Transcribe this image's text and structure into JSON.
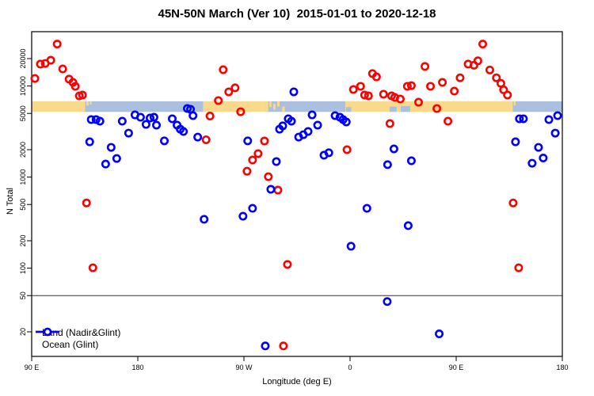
{
  "title": "45N-50N March (Ver 10)  2015-01-01 to 2020-12-18",
  "chart_data": {
    "type": "scatter",
    "title": "45N-50N March (Ver 10)  2015-01-01 to 2020-12-18",
    "xlabel": "Longitude (deg E)",
    "ylabel": "N Total",
    "x_axis": {
      "range_deg": [
        90,
        540
      ],
      "note": "longitude axis wraps: 90E to 180 then 90W, 0, 90E, 180",
      "ticks": [
        {
          "lon": 90,
          "label": "90 E"
        },
        {
          "lon": 180,
          "label": "180"
        },
        {
          "lon": 270,
          "label": "90 W"
        },
        {
          "lon": 360,
          "label": "0"
        },
        {
          "lon": 450,
          "label": "90 E"
        },
        {
          "lon": 540,
          "label": "180"
        }
      ]
    },
    "y_axis": {
      "scale": "log10",
      "range": [
        11,
        40000
      ],
      "ticks": [
        20,
        50,
        100,
        200,
        500,
        1000,
        2000,
        5000,
        10000,
        20000
      ],
      "grid": false
    },
    "reference_line": {
      "value": 50,
      "color": "#333333"
    },
    "surface_band": {
      "value_top": 6800,
      "value_bottom": 5200,
      "land_color": "#F9D98C",
      "ocean_color": "#ABC0DE",
      "segments": [
        {
          "type": "land",
          "from": 90,
          "to": 135.2
        },
        {
          "type": "ocean",
          "from": 135.2,
          "to": 235.5
        },
        {
          "type": "land",
          "from": 235.5,
          "to": 288.3
        },
        {
          "type": "ocean",
          "from": 288.3,
          "to": 356
        },
        {
          "type": "land",
          "from": 356,
          "to": 498
        },
        {
          "type": "ocean",
          "from": 498,
          "to": 541.5
        }
      ],
      "patches": [
        {
          "type": "land",
          "from": 288.3,
          "to": 290.6,
          "top": 0,
          "bottom": 1
        },
        {
          "type": "land",
          "from": 291.6,
          "to": 293.4,
          "top": 0,
          "bottom": 0.55
        },
        {
          "type": "land",
          "from": 294.8,
          "to": 296.8,
          "top": 0.25,
          "bottom": 0.8
        },
        {
          "type": "land",
          "from": 298.2,
          "to": 300.2,
          "top": 0,
          "bottom": 0.5
        },
        {
          "type": "land",
          "from": 302.4,
          "to": 304.6,
          "top": 0.5,
          "bottom": 1
        },
        {
          "type": "land",
          "from": 136.3,
          "to": 138.3,
          "top": 0,
          "bottom": 0.4
        },
        {
          "type": "land",
          "from": 139.3,
          "to": 140.8,
          "top": 0,
          "bottom": 0.3
        },
        {
          "type": "land",
          "from": 498.8,
          "to": 500.4,
          "top": 0,
          "bottom": 0.4
        },
        {
          "type": "ocean",
          "from": 356.5,
          "to": 361,
          "top": 0.55,
          "bottom": 1
        },
        {
          "type": "ocean",
          "from": 393.5,
          "to": 399.5,
          "top": 0.5,
          "bottom": 1
        },
        {
          "type": "ocean",
          "from": 403,
          "to": 411,
          "top": 0.45,
          "bottom": 1
        }
      ]
    },
    "legend_position": "bottom-left",
    "series": [
      {
        "name": "Land (Nadir&Glint)",
        "color": "#FF0000",
        "marker": "open-circle",
        "points": [
          [
            92.7,
            12100
          ],
          [
            97.4,
            17400
          ],
          [
            101.5,
            17700
          ],
          [
            106.2,
            19200
          ],
          [
            111.6,
            28900
          ],
          [
            116.3,
            15400
          ],
          [
            121.7,
            11900
          ],
          [
            125.0,
            10960
          ],
          [
            127.0,
            9930
          ],
          [
            130.4,
            7800
          ],
          [
            133.1,
            7960
          ],
          [
            136.5,
            520
          ],
          [
            141.9,
            101
          ],
          [
            237.9,
            2570
          ],
          [
            241.2,
            4680
          ],
          [
            248.3,
            6920
          ],
          [
            252.4,
            15100
          ],
          [
            257.1,
            8630
          ],
          [
            262.5,
            9550
          ],
          [
            267.2,
            5220
          ],
          [
            272.6,
            1160
          ],
          [
            277.3,
            1540
          ],
          [
            282.0,
            1810
          ],
          [
            287.4,
            2490
          ],
          [
            290.7,
            1010
          ],
          [
            298.8,
            720
          ],
          [
            303.5,
            14
          ],
          [
            306.9,
            110
          ],
          [
            357.4,
            2000
          ],
          [
            362.8,
            9160
          ],
          [
            368.9,
            9930
          ],
          [
            372.3,
            7960
          ],
          [
            375.6,
            7800
          ],
          [
            379.0,
            13700
          ],
          [
            382.4,
            12600
          ],
          [
            388.4,
            8130
          ],
          [
            393.8,
            3870
          ],
          [
            395.2,
            7800
          ],
          [
            397.9,
            7500
          ],
          [
            402.6,
            7200
          ],
          [
            408.6,
            9930
          ],
          [
            412.0,
            10100
          ],
          [
            418.1,
            6640
          ],
          [
            423.5,
            16400
          ],
          [
            428.2,
            9930
          ],
          [
            433.6,
            5660
          ],
          [
            438.3,
            10960
          ],
          [
            443.0,
            4110
          ],
          [
            448.4,
            8790
          ],
          [
            453.3,
            12300
          ],
          [
            460.1,
            17400
          ],
          [
            465.1,
            16900
          ],
          [
            468.4,
            18900
          ],
          [
            472.5,
            28900
          ],
          [
            478.5,
            15000
          ],
          [
            484.1,
            12300
          ],
          [
            487.9,
            10700
          ],
          [
            490.2,
            9090
          ],
          [
            493.5,
            7960
          ],
          [
            498.3,
            520
          ],
          [
            503.0,
            101
          ]
        ]
      },
      {
        "name": "Ocean (Glint)",
        "color": "#0000FF",
        "marker": "open-circle",
        "points": [
          [
            139.2,
            2440
          ],
          [
            140.5,
            4280
          ],
          [
            144.6,
            4280
          ],
          [
            147.9,
            4110
          ],
          [
            152.7,
            1390
          ],
          [
            157.4,
            2120
          ],
          [
            162.1,
            1600
          ],
          [
            166.8,
            4110
          ],
          [
            172.2,
            3040
          ],
          [
            177.6,
            4820
          ],
          [
            182.3,
            4540
          ],
          [
            187.0,
            3790
          ],
          [
            190.4,
            4450
          ],
          [
            193.7,
            4540
          ],
          [
            195.8,
            3720
          ],
          [
            202.5,
            2500
          ],
          [
            209.2,
            4370
          ],
          [
            213.3,
            3720
          ],
          [
            216.0,
            3360
          ],
          [
            218.7,
            3170
          ],
          [
            222.0,
            5660
          ],
          [
            224.7,
            5550
          ],
          [
            226.8,
            4730
          ],
          [
            230.8,
            2750
          ],
          [
            236.2,
            344
          ],
          [
            269.2,
            372
          ],
          [
            273.2,
            2500
          ],
          [
            277.3,
            454
          ],
          [
            288.1,
            14
          ],
          [
            292.8,
            735
          ],
          [
            297.5,
            1480
          ],
          [
            300.2,
            3360
          ],
          [
            302.9,
            3650
          ],
          [
            307.6,
            4370
          ],
          [
            310.3,
            4110
          ],
          [
            312.3,
            8630
          ],
          [
            316.4,
            2750
          ],
          [
            320.4,
            2920
          ],
          [
            324.4,
            3170
          ],
          [
            327.8,
            4820
          ],
          [
            332.5,
            3720
          ],
          [
            337.9,
            1740
          ],
          [
            342.0,
            1850
          ],
          [
            347.3,
            4730
          ],
          [
            351.4,
            4540
          ],
          [
            354.1,
            4280
          ],
          [
            356.8,
            4030
          ],
          [
            360.8,
            174
          ],
          [
            374.3,
            454
          ],
          [
            391.5,
            43
          ],
          [
            391.8,
            1370
          ],
          [
            397.2,
            2040
          ],
          [
            409.3,
            293
          ],
          [
            412.0,
            1510
          ],
          [
            435.6,
            19
          ],
          [
            500.3,
            2440
          ],
          [
            503.6,
            4370
          ],
          [
            507.0,
            4370
          ],
          [
            514.4,
            1420
          ],
          [
            519.8,
            2120
          ],
          [
            523.8,
            1620
          ],
          [
            528.6,
            4280
          ],
          [
            534.0,
            3040
          ],
          [
            536.0,
            4730
          ]
        ]
      }
    ]
  },
  "legend": {
    "land_label": "Land (Nadir&Glint)",
    "ocean_label": "Ocean (Glint)"
  }
}
